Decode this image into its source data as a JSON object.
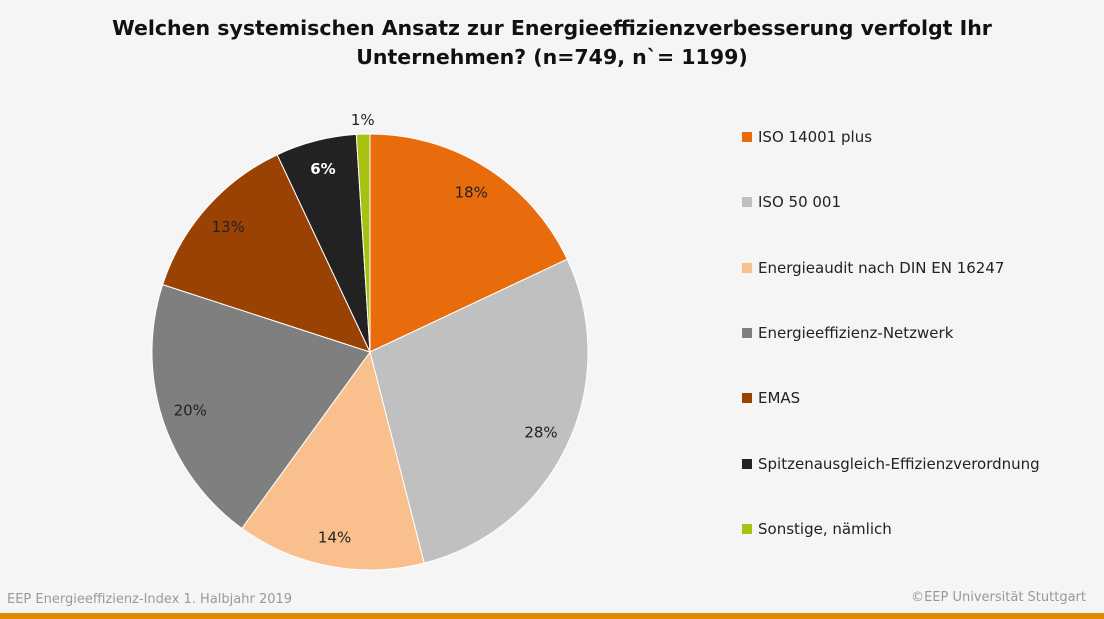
{
  "chart_data": {
    "type": "pie",
    "title": "Welchen systemischen Ansatz zur Energieeffizienzverbesserung verfolgt Ihr Unternehmen? (n=749, n`= 1199)",
    "title_lines": [
      "Welchen systemischen Ansatz zur Energieeffizienzverbesserung verfolgt Ihr",
      "Unternehmen? (n=749, n`= 1199)"
    ],
    "legend_position": "right",
    "slices": [
      {
        "name": "ISO 14001 plus",
        "value": 18,
        "label": "18%",
        "color": "#e96c0c"
      },
      {
        "name": "ISO 50 001",
        "value": 28,
        "label": "28%",
        "color": "#c0c0c0"
      },
      {
        "name": "Energieaudit nach DIN EN 16247",
        "value": 14,
        "label": "14%",
        "color": "#f9c08e"
      },
      {
        "name": "Energieeffizienz-Netzwerk",
        "value": 20,
        "label": "20%",
        "color": "#7f7f7f"
      },
      {
        "name": "EMAS",
        "value": 13,
        "label": "13%",
        "color": "#9a4204"
      },
      {
        "name": "Spitzenausgleich-Effizienzverordnung",
        "value": 6,
        "label": "6%",
        "color": "#222222"
      },
      {
        "name": "Sonstige, nämlich",
        "value": 1,
        "label": "1%",
        "color": "#a8c010"
      }
    ]
  },
  "footer": {
    "left": "EEP Energieeffizienz-Index 1. Halbjahr 2019",
    "right": "©EEP Universität Stuttgart",
    "bar_color": "#e08a00"
  }
}
